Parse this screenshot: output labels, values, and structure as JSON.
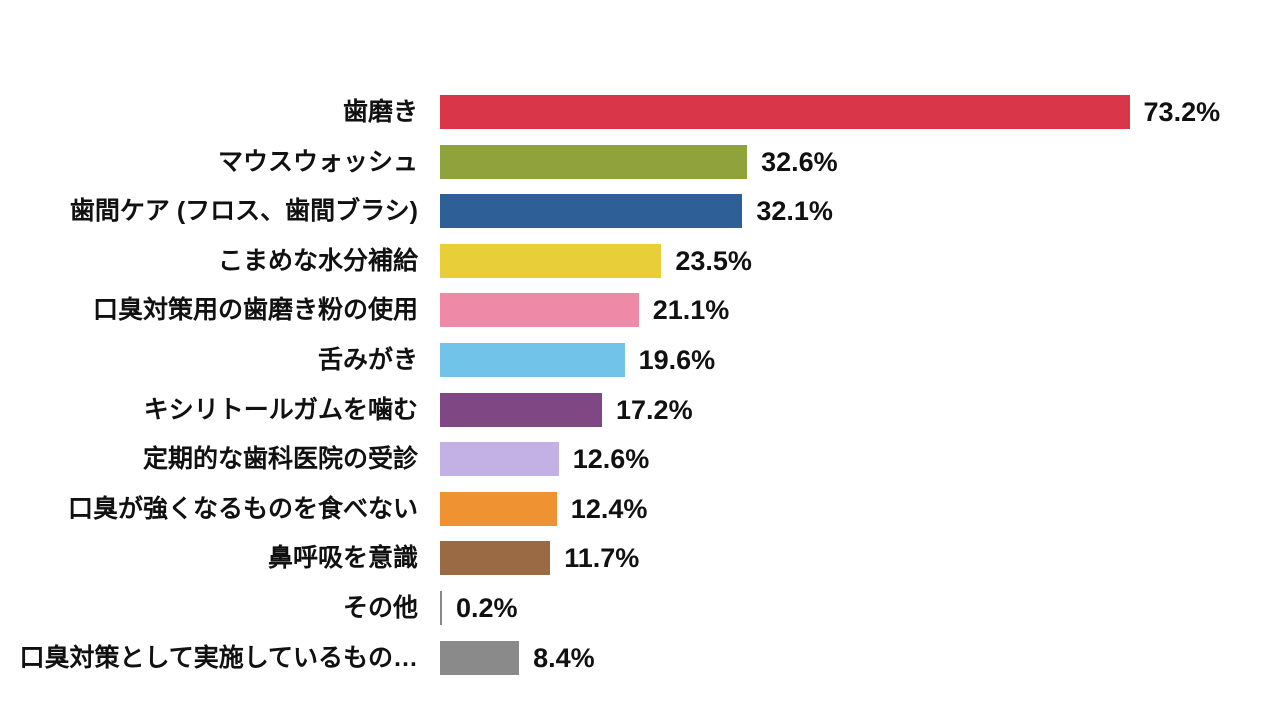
{
  "chart_data": {
    "type": "bar",
    "orientation": "horizontal",
    "title": "",
    "xlabel": "",
    "ylabel": "",
    "xlim": [
      0,
      80
    ],
    "grid": false,
    "categories": [
      "歯磨き",
      "マウスウォッシュ",
      "歯間ケア (フロス、歯間ブラシ)",
      "こまめな水分補給",
      "口臭対策用の歯磨き粉の使用",
      "舌みがき",
      "キシリトールガムを噛む",
      "定期的な歯科医院の受診",
      "口臭が強くなるものを食べない",
      "鼻呼吸を意識",
      "その他",
      "口臭対策として実施しているもの…"
    ],
    "values": [
      73.2,
      32.6,
      32.1,
      23.5,
      21.1,
      19.6,
      17.2,
      12.6,
      12.4,
      11.7,
      0.2,
      8.4
    ],
    "value_labels": [
      "73.2%",
      "32.6%",
      "32.1%",
      "23.5%",
      "21.1%",
      "19.6%",
      "17.2%",
      "12.6%",
      "12.4%",
      "11.7%",
      "0.2%",
      "8.4%"
    ],
    "colors": [
      "#d9364a",
      "#8fa23c",
      "#2e5f97",
      "#e8cf3a",
      "#ee8aa8",
      "#72c3ea",
      "#7f4784",
      "#c3b0e4",
      "#ef9332",
      "#9a6a45",
      "#888888",
      "#8a8a8a"
    ]
  }
}
